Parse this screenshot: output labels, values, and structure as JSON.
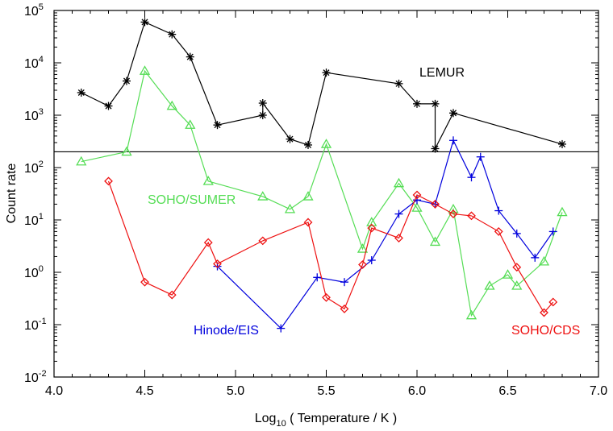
{
  "chart_data": {
    "type": "scatter",
    "title": "",
    "xlabel": "Log10 ( Temperature / K )",
    "ylabel": "Count rate",
    "xlim": [
      4.0,
      7.0
    ],
    "ylim_log10": [
      -2,
      5
    ],
    "y_scale": "log",
    "grid": false,
    "x_ticks": [
      "4.0",
      "4.5",
      "5.0",
      "5.5",
      "6.0",
      "6.5",
      "7.0"
    ],
    "y_ticks": [
      {
        "base": "10",
        "exp": "-2"
      },
      {
        "base": "10",
        "exp": "-1"
      },
      {
        "base": "10",
        "exp": "0"
      },
      {
        "base": "10",
        "exp": "1"
      },
      {
        "base": "10",
        "exp": "2"
      },
      {
        "base": "10",
        "exp": "3"
      },
      {
        "base": "10",
        "exp": "4"
      },
      {
        "base": "10",
        "exp": "5"
      }
    ],
    "reference_line": {
      "y": 200
    },
    "series": [
      {
        "name": "LEMUR",
        "color": "#000000",
        "marker": "asterisk",
        "x": [
          4.15,
          4.3,
          4.4,
          4.5,
          4.65,
          4.75,
          4.9,
          5.15,
          5.15,
          5.3,
          5.4,
          5.5,
          5.9,
          6.0,
          6.1,
          6.1,
          6.2,
          6.8
        ],
        "y": [
          2700,
          1500,
          4500,
          60000,
          35000,
          13000,
          650,
          1000,
          1700,
          350,
          270,
          6500,
          4000,
          1650,
          1650,
          230,
          1100,
          280
        ]
      },
      {
        "name": "SOHO/SUMER",
        "color": "#55dd55",
        "marker": "triangle",
        "x": [
          4.15,
          4.4,
          4.5,
          4.65,
          4.75,
          4.85,
          5.15,
          5.3,
          5.4,
          5.5,
          5.7,
          5.75,
          5.9,
          6.0,
          6.1,
          6.2,
          6.3,
          6.4,
          6.5,
          6.55,
          6.7,
          6.8
        ],
        "y": [
          130,
          200,
          7000,
          1500,
          650,
          55,
          28,
          16,
          28,
          280,
          2.8,
          9,
          50,
          17,
          3.8,
          16,
          0.15,
          0.55,
          0.9,
          0.55,
          1.6,
          14
        ]
      },
      {
        "name": "Hinode/EIS",
        "color": "#0000dd",
        "marker": "plus",
        "x": [
          4.9,
          5.25,
          5.45,
          5.6,
          5.75,
          5.9,
          6.0,
          6.1,
          6.2,
          6.3,
          6.35,
          6.45,
          6.55,
          6.65,
          6.75
        ],
        "y": [
          1.3,
          0.085,
          0.8,
          0.65,
          1.7,
          13,
          24,
          20,
          330,
          65,
          160,
          15,
          5.5,
          1.9,
          6
        ]
      },
      {
        "name": "SOHO/CDS",
        "color": "#ee1111",
        "marker": "diamond",
        "x": [
          4.3,
          4.5,
          4.65,
          4.85,
          4.9,
          5.15,
          5.4,
          5.5,
          5.6,
          5.7,
          5.75,
          5.9,
          6.0,
          6.1,
          6.2,
          6.3,
          6.45,
          6.55,
          6.7,
          6.75
        ],
        "y": [
          55,
          0.65,
          0.37,
          3.7,
          1.45,
          4,
          9,
          0.33,
          0.2,
          1.4,
          7,
          4.5,
          30,
          20,
          13,
          12,
          6,
          1.25,
          0.17,
          0.27
        ]
      }
    ],
    "labels": [
      {
        "text": "LEMUR",
        "series": 0
      },
      {
        "text": "SOHO/SUMER",
        "series": 1
      },
      {
        "text": "Hinode/EIS",
        "series": 2
      },
      {
        "text": "SOHO/CDS",
        "series": 3
      }
    ]
  }
}
